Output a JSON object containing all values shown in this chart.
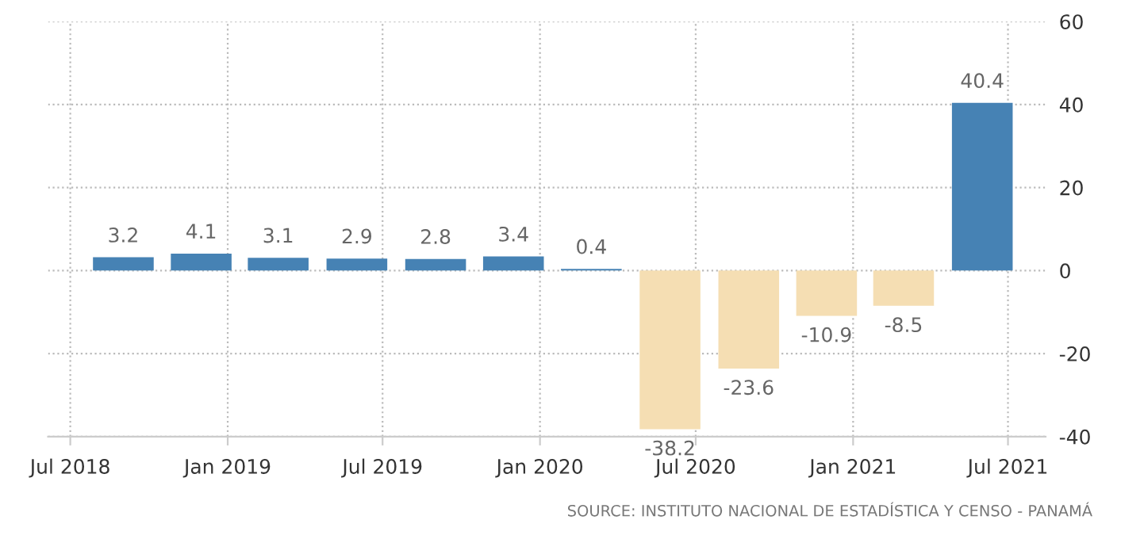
{
  "chart_data": {
    "type": "bar",
    "x": [
      "2018-09-01",
      "2018-12-01",
      "2019-03-01",
      "2019-06-01",
      "2019-09-01",
      "2019-12-01",
      "2020-03-01",
      "2020-06-01",
      "2020-09-01",
      "2020-12-01",
      "2021-03-01",
      "2021-06-01"
    ],
    "values": [
      3.2,
      4.1,
      3.1,
      2.9,
      2.8,
      3.4,
      0.4,
      -38.2,
      -23.6,
      -10.9,
      -8.5,
      40.4
    ],
    "colors": [
      "#4682b4",
      "#4682b4",
      "#4682b4",
      "#4682b4",
      "#4682b4",
      "#4682b4",
      "#4682b4",
      "#f5deb3",
      "#f5deb3",
      "#f5deb3",
      "#f5deb3",
      "#4682b4"
    ],
    "data_labels": true,
    "xlim": [
      "2018-06-05",
      "2021-08-14"
    ],
    "xticks": [
      {
        "value": "2018-07-01",
        "label": "Jul 2018"
      },
      {
        "value": "2019-01-01",
        "label": "Jan 2019"
      },
      {
        "value": "2019-07-01",
        "label": "Jul 2019"
      },
      {
        "value": "2020-01-01",
        "label": "Jan 2020"
      },
      {
        "value": "2020-07-01",
        "label": "Jul 2020"
      },
      {
        "value": "2021-01-01",
        "label": "Jan 2021"
      },
      {
        "value": "2021-07-01",
        "label": "Jul 2021"
      }
    ],
    "ylim": [
      -40,
      60
    ],
    "yticks": [
      -40,
      -20,
      0,
      20,
      40,
      60
    ],
    "grid": true,
    "annotations": [
      "SOURCE: INSTITUTO NACIONAL DE ESTADÍSTICA Y CENSO - PANAMÁ"
    ]
  }
}
